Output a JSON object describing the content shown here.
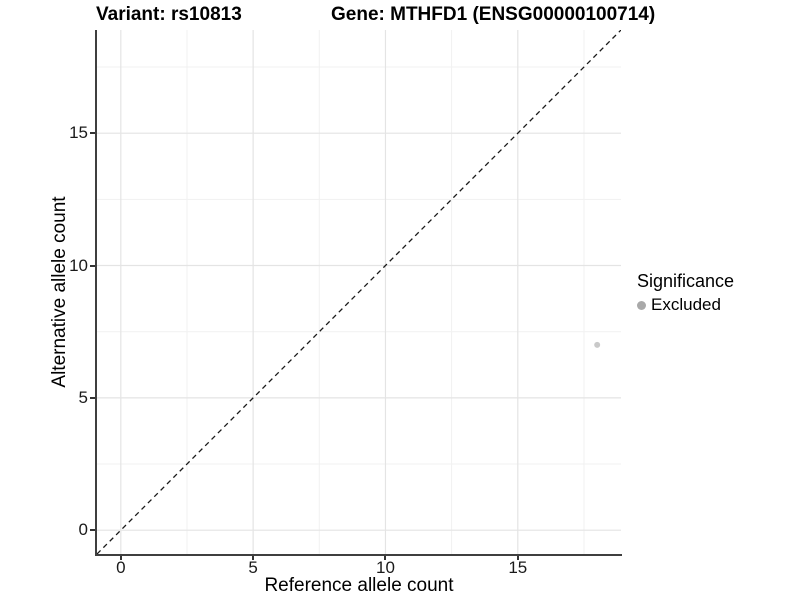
{
  "figure": {
    "title_variant": "Variant: rs10813",
    "title_gene": "Gene: MTHFD1 (ENSG00000100714)"
  },
  "chart_data": {
    "type": "scatter",
    "title": "Variant: rs10813    Gene: MTHFD1 (ENSG00000100714)",
    "xlabel": "Reference allele count",
    "ylabel": "Alternative allele count",
    "xlim": [
      -0.9,
      18.9
    ],
    "ylim": [
      -0.9,
      18.9
    ],
    "x_ticks": [
      0,
      5,
      10,
      15
    ],
    "y_ticks": [
      0,
      5,
      10,
      15
    ],
    "x_minor_gridlines": [
      2.5,
      7.5,
      12.5,
      17.5
    ],
    "y_minor_gridlines": [
      2.5,
      7.5,
      12.5,
      17.5
    ],
    "grid": "major+minor",
    "reference_line": {
      "style": "dashed",
      "slope": 1,
      "intercept": 0
    },
    "series": [
      {
        "name": "Excluded",
        "color": "#c9c9c9",
        "point_radius": 3,
        "points": [
          {
            "x": 18,
            "y": 7
          }
        ]
      }
    ],
    "legend": {
      "position": "right",
      "title": "Significance",
      "items": [
        {
          "label": "Excluded",
          "color": "#a9a9a9"
        }
      ]
    }
  },
  "colors": {
    "background": "#ffffff",
    "axis_line": "#3f3f3f",
    "tick_mark": "#333333",
    "grid_major": "#e4e4e4",
    "grid_minor": "#f1f1f1",
    "title_text": "#000000",
    "tick_label_text": "#1a1a1a",
    "reference_line": "#1a1a1a"
  }
}
